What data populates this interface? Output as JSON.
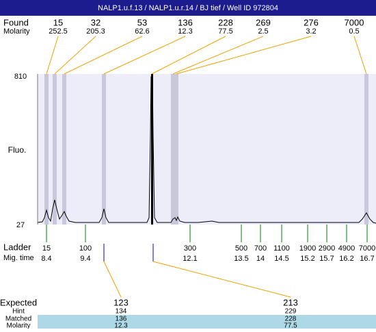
{
  "title": "NALP1.u.f.13 / NALP1.u.r.14 / BJ tief / Well ID 972804",
  "found": {
    "label": "Found",
    "molarity_label": "Molarity",
    "peaks": [
      {
        "size": 15,
        "molarity": 252.5
      },
      {
        "size": 32,
        "molarity": 205.3
      },
      {
        "size": 53,
        "molarity": 62.6
      },
      {
        "size": 136,
        "molarity": 12.3
      },
      {
        "size": 228,
        "molarity": 77.5
      },
      {
        "size": 269,
        "molarity": 2.5
      },
      {
        "size": 276,
        "molarity": 3.2
      },
      {
        "size": 7000,
        "molarity": 0.5
      }
    ]
  },
  "axis": {
    "top": 810,
    "bottom": 27,
    "label": "Fluo."
  },
  "ladder": {
    "label": "Ladder",
    "time_label": "Mig. time",
    "items": [
      {
        "size": 15,
        "time": 8.4
      },
      {
        "size": 100,
        "time": 9.4
      },
      {
        "size": 300,
        "time": 12.1
      },
      {
        "size": 500,
        "time": 13.5
      },
      {
        "size": 700,
        "time": 14
      },
      {
        "size": 1100,
        "time": 14.5
      },
      {
        "size": 1900,
        "time": 15.2
      },
      {
        "size": 2900,
        "time": 15.7
      },
      {
        "size": 4900,
        "time": 16.2
      },
      {
        "size": 7000,
        "time": 16.7
      }
    ]
  },
  "results": {
    "rows": [
      {
        "label": "Expected",
        "values": [
          123,
          213
        ]
      },
      {
        "label": "Hint",
        "values": [
          134,
          229
        ]
      },
      {
        "label": "Matched",
        "values": [
          136,
          228
        ]
      },
      {
        "label": "Molarity",
        "values": [
          12.3,
          77.5
        ]
      }
    ]
  }
}
